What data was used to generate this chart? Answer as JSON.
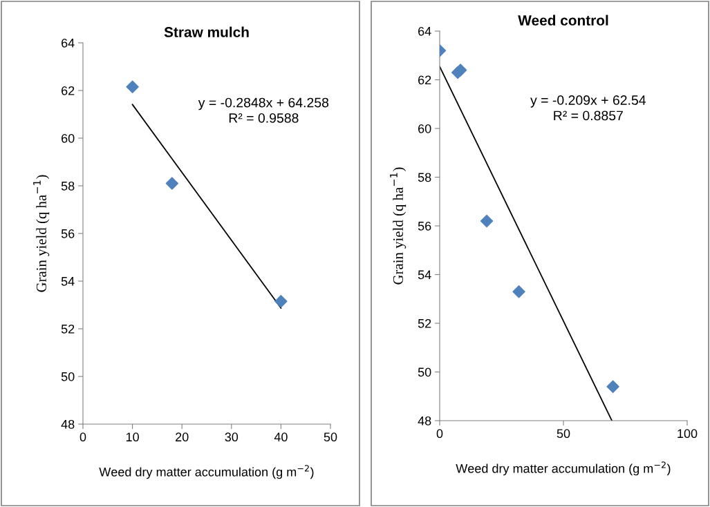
{
  "chart_data": [
    {
      "type": "scatter",
      "title": "Straw mulch",
      "xlabel": "Weed dry matter accumulation (g m$^{−2}$)",
      "ylabel": "Grain yield (q ha$^{−1}$)",
      "xlim": [
        0,
        50
      ],
      "xticks": [
        0,
        10,
        20,
        30,
        40,
        50
      ],
      "ylim": [
        48,
        64
      ],
      "yticks": [
        48,
        50,
        52,
        54,
        56,
        58,
        60,
        62,
        64
      ],
      "grid": false,
      "legend": false,
      "annotations": [
        "y = -0.2848x + 64.258\nR² = 0.9588"
      ],
      "series": [
        {
          "color": "#4f81bd",
          "marker": "diamond",
          "x": [
            10,
            18,
            40
          ],
          "values": [
            62.15,
            58.1,
            53.15
          ]
        },
        {
          "type": "line",
          "color": "#000000",
          "marker": "none",
          "line_style": "solid",
          "x": [
            10,
            40
          ],
          "values": [
            61.41,
            52.87
          ]
        }
      ]
    },
    {
      "type": "scatter",
      "title": "Weed control",
      "xlabel": "Weed dry matter accumulation (g m$^{−2}$)",
      "ylabel": "Grain yield (q ha$^{−1}$)",
      "xlim": [
        0,
        100
      ],
      "xticks": [
        0,
        50,
        100
      ],
      "ylim": [
        48,
        64
      ],
      "yticks": [
        48,
        50,
        52,
        54,
        56,
        58,
        60,
        62,
        64
      ],
      "grid": false,
      "legend": false,
      "annotations": [
        "y = -0.209x + 62.54\nR² = 0.8857"
      ],
      "series": [
        {
          "color": "#4f81bd",
          "marker": "diamond",
          "x": [
            0,
            7.3,
            8.4,
            19,
            32,
            70
          ],
          "values": [
            63.2,
            62.3,
            62.4,
            56.2,
            53.3,
            49.4
          ]
        },
        {
          "type": "line",
          "color": "#000000",
          "marker": "none",
          "line_style": "solid",
          "x": [
            0,
            69.57
          ],
          "values": [
            62.54,
            48.0
          ]
        }
      ]
    }
  ]
}
